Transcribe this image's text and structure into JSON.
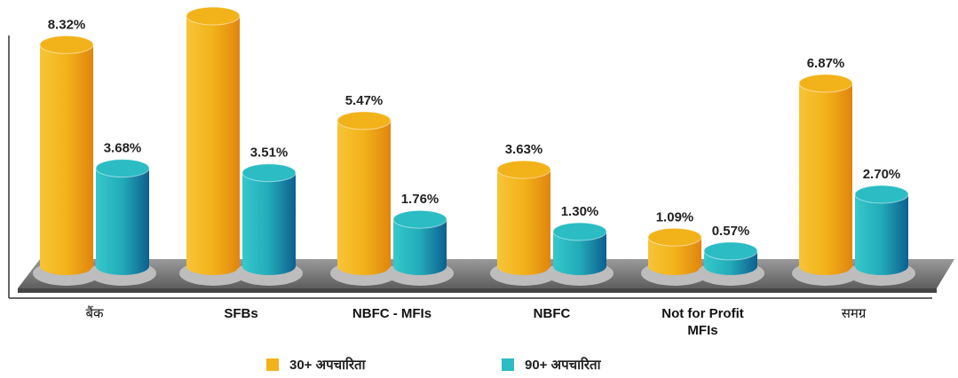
{
  "chart_data": {
    "type": "bar",
    "categories": [
      "बैंक",
      "SFBs",
      "NBFC - MFIs",
      "NBFC",
      "Not for Profit MFIs",
      "समग्र"
    ],
    "series": [
      {
        "name": "30+ अपचारिता",
        "color": "#f2b21a",
        "values": [
          8.32,
          9.4,
          5.47,
          3.63,
          1.09,
          6.87
        ],
        "value_labels": [
          "8.32%",
          null,
          "5.47%",
          "3.63%",
          "1.09%",
          "6.87%"
        ]
      },
      {
        "name": "90+ अपचारिता",
        "color": "#2bbcc4",
        "values": [
          3.68,
          3.51,
          1.76,
          1.3,
          0.57,
          2.7
        ],
        "value_labels": [
          "3.68%",
          "3.51%",
          "1.76%",
          "1.30%",
          "0.57%",
          "2.70%"
        ]
      }
    ]
  }
}
